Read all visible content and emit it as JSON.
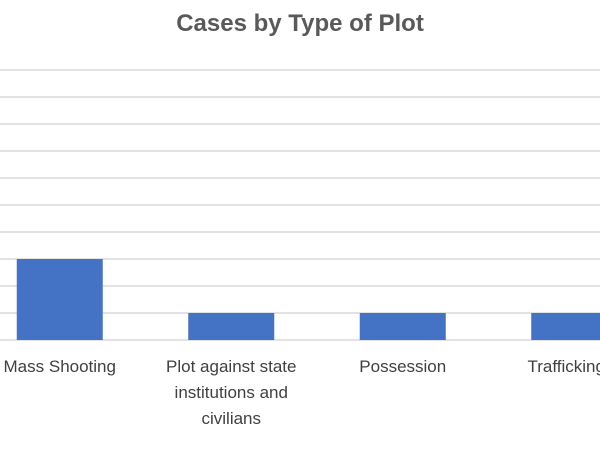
{
  "chart_data": {
    "type": "bar",
    "title": "Cases by Type of Plot",
    "categories": [
      "Mass Shooting",
      "Plot against state institutions and civilians",
      "Possession",
      "Trafficking/S"
    ],
    "category_label_lines": [
      [
        "Mass Shooting"
      ],
      [
        "Plot against state",
        "institutions and",
        "civilians"
      ],
      [
        "Possession"
      ],
      [
        "Trafficking/S"
      ]
    ],
    "values": [
      3,
      1,
      1,
      1
    ],
    "ylim": [
      0,
      10
    ],
    "grid": true,
    "bar_color": "#4472C4",
    "grid_color": "#D9D9D9"
  }
}
